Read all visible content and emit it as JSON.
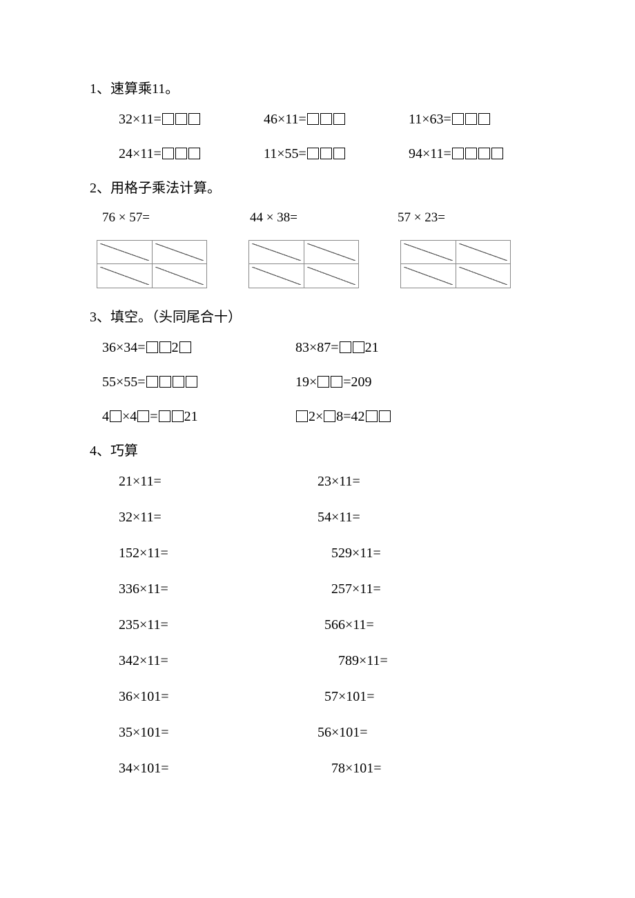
{
  "sections": {
    "s1": {
      "title": "1、速算乘11。",
      "rows": [
        {
          "a_pre": "32×11=",
          "a_boxes": 3,
          "b_pre": "46×11=",
          "b_boxes": 3,
          "c_pre": "11×63=",
          "c_boxes": 3
        },
        {
          "a_pre": "24×11=",
          "a_boxes": 3,
          "b_pre": "11×55=",
          "b_boxes": 3,
          "c_pre": "94×11=",
          "c_boxes": 4
        }
      ]
    },
    "s2": {
      "title": "2、用格子乘法计算。",
      "labels": [
        "76 × 57=",
        "44 × 38=",
        "57 × 23="
      ]
    },
    "s3": {
      "title": "3、填空。（头同尾合十）",
      "rows": [
        {
          "l_parts": [
            {
              "t": "36×34="
            },
            {
              "b": 2
            },
            {
              "t": "2"
            },
            {
              "b": 1
            }
          ],
          "r_parts": [
            {
              "t": "83×87="
            },
            {
              "b": 2
            },
            {
              "t": "21"
            }
          ]
        },
        {
          "l_parts": [
            {
              "t": "55×55="
            },
            {
              "b": 4
            }
          ],
          "r_parts": [
            {
              "t": "19×"
            },
            {
              "b": 2
            },
            {
              "t": "=209"
            }
          ]
        },
        {
          "l_parts": [
            {
              "t": "4"
            },
            {
              "b": 1
            },
            {
              "t": "×4"
            },
            {
              "b": 1
            },
            {
              "t": "="
            },
            {
              "b": 2
            },
            {
              "t": "21"
            }
          ],
          "r_parts": [
            {
              "b": 1
            },
            {
              "t": "2×"
            },
            {
              "b": 1
            },
            {
              "t": "8=42"
            },
            {
              "b": 2
            }
          ]
        }
      ]
    },
    "s4": {
      "title": "4、巧算",
      "indent_pairs": [
        {
          "l": "21×11=",
          "r": "23×11=",
          "li": 0,
          "ri": 8
        },
        {
          "l": "32×11=",
          "r": "54×11=",
          "li": 0,
          "ri": 8
        },
        {
          "l": "152×11=",
          "r": "529×11=",
          "li": 0,
          "ri": 28
        },
        {
          "l": "336×11=",
          "r": "257×11=",
          "li": 0,
          "ri": 28
        },
        {
          "l": "235×11=",
          "r": "566×11=",
          "li": 0,
          "ri": 18
        },
        {
          "l": "342×11=",
          "r": "789×11=",
          "li": 0,
          "ri": 38
        },
        {
          "l": "36×101=",
          "r": "57×101=",
          "li": 0,
          "ri": 18
        },
        {
          "l": "35×101=",
          "r": "56×101=",
          "li": 0,
          "ri": 8
        },
        {
          "l": "34×101=",
          "r": "78×101=",
          "li": 0,
          "ri": 28
        }
      ]
    }
  },
  "style": {
    "text_color": "#000000",
    "background_color": "#ffffff",
    "lattice_border_color": "#888888",
    "lattice_diag_color": "#555555",
    "body_font": "SimSun",
    "number_font": "Times New Roman",
    "base_fontsize": 20
  }
}
